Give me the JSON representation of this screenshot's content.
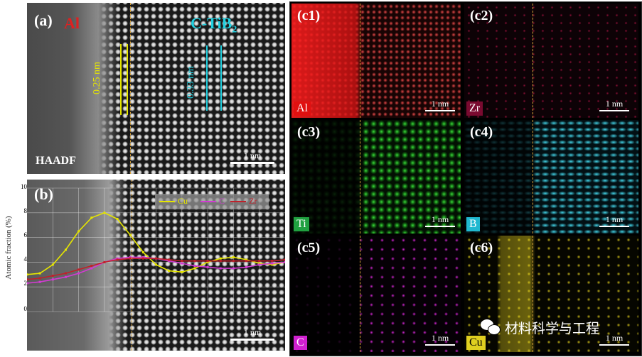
{
  "panel_a": {
    "label": "(a)",
    "phase_left": "Al",
    "phase_right_main": "C-TiB",
    "phase_right_sub": "2",
    "spacing_left": "0.25 nm",
    "spacing_right": "0.33 nm",
    "detector": "HAADF",
    "scale": "1 nm"
  },
  "panel_b": {
    "label": "(b)",
    "scale": "1 nm",
    "legend": [
      "Cu",
      "C",
      "Zr"
    ],
    "colors": {
      "Cu": "#e6e600",
      "C": "#d23bd2",
      "Zr": "#c0202a"
    }
  },
  "chart_data": {
    "type": "line",
    "ylabel": "Atomic fraction (%)",
    "ylim": [
      0,
      10
    ],
    "yticks": [
      "0",
      "2",
      "4",
      "6",
      "8",
      "10"
    ],
    "series": [
      {
        "name": "Cu",
        "x": [
          0,
          1,
          2,
          3,
          4,
          5,
          6,
          7,
          8,
          9,
          10,
          11,
          12,
          13,
          14,
          15,
          16,
          17,
          18,
          19,
          20
        ],
        "values": [
          3.0,
          3.1,
          3.8,
          5.0,
          6.5,
          7.6,
          8.0,
          7.5,
          6.2,
          4.8,
          3.8,
          3.3,
          3.2,
          3.5,
          4.0,
          4.3,
          4.4,
          4.2,
          3.9,
          3.8,
          4.0
        ]
      },
      {
        "name": "C",
        "x": [
          0,
          1,
          2,
          3,
          4,
          5,
          6,
          7,
          8,
          9,
          10,
          11,
          12,
          13,
          14,
          15,
          16,
          17,
          18,
          19,
          20
        ],
        "values": [
          2.3,
          2.4,
          2.6,
          2.8,
          3.1,
          3.5,
          4.0,
          4.3,
          4.4,
          4.4,
          4.3,
          4.1,
          3.9,
          3.7,
          3.6,
          3.5,
          3.5,
          3.6,
          3.8,
          3.9,
          4.0
        ]
      },
      {
        "name": "Zr",
        "x": [
          0,
          1,
          2,
          3,
          4,
          5,
          6,
          7,
          8,
          9,
          10,
          11,
          12,
          13,
          14,
          15,
          16,
          17,
          18,
          19,
          20
        ],
        "values": [
          2.6,
          2.7,
          2.9,
          3.1,
          3.4,
          3.7,
          4.0,
          4.2,
          4.3,
          4.3,
          4.3,
          4.2,
          4.1,
          4.1,
          4.1,
          4.1,
          4.1,
          4.1,
          4.1,
          4.1,
          4.2
        ]
      }
    ]
  },
  "maps": [
    {
      "id": "c1",
      "label": "(c1)",
      "element": "Al",
      "color": "#e01010",
      "scale": "1 nm"
    },
    {
      "id": "c2",
      "label": "(c2)",
      "element": "Zr",
      "color": "#a01040",
      "scale": "1 nm"
    },
    {
      "id": "c3",
      "label": "(c3)",
      "element": "Ti",
      "color": "#20c040",
      "scale": "1 nm"
    },
    {
      "id": "c4",
      "label": "(c4)",
      "element": "B",
      "color": "#30d0e0",
      "scale": "1 nm"
    },
    {
      "id": "c5",
      "label": "(c5)",
      "element": "C",
      "color": "#d020d0",
      "scale": "1 nm"
    },
    {
      "id": "c6",
      "label": "(c6)",
      "element": "Cu",
      "color": "#e0d020",
      "scale": "1 nm"
    }
  ],
  "watermark": "材料科学与工程"
}
